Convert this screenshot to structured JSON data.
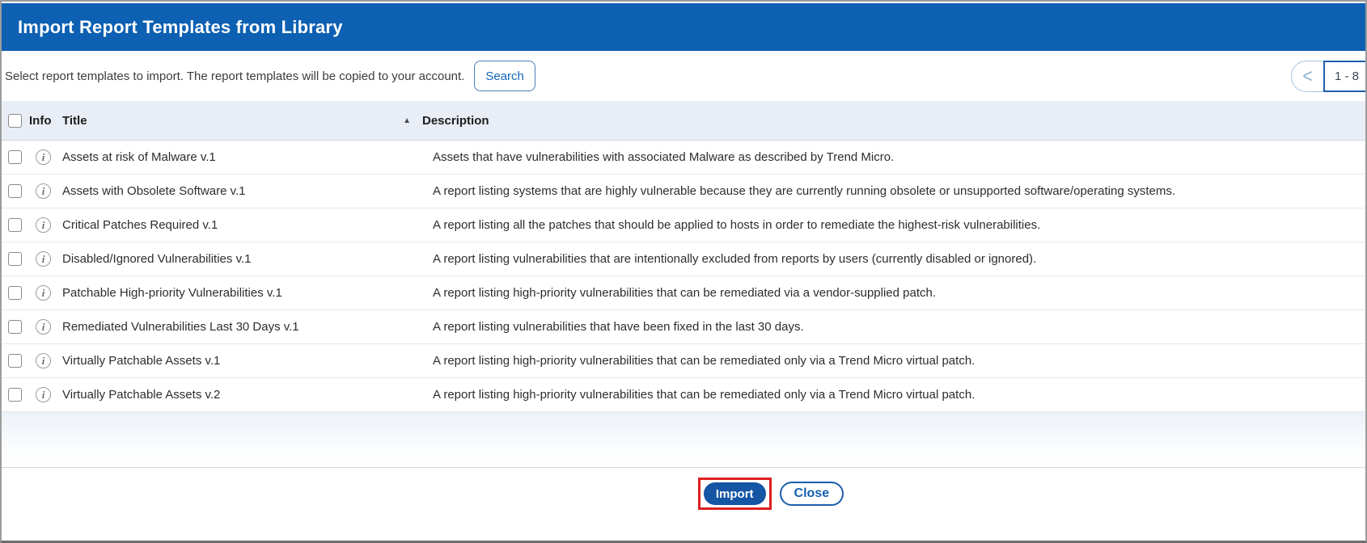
{
  "dialog": {
    "title": "Import Report Templates from Library"
  },
  "toolbar": {
    "instruction": "Select report templates to import. The report templates will be copied to your account.",
    "search_label": "Search",
    "pagination": {
      "prev_glyph": "<",
      "range": "1 - 8"
    }
  },
  "table": {
    "headers": {
      "info": "Info",
      "title": "Title",
      "description": "Description",
      "sort_ascending_glyph": "▲"
    },
    "rows": [
      {
        "title": "Assets at risk of Malware v.1",
        "description": "Assets that have vulnerabilities with associated Malware as described by Trend Micro."
      },
      {
        "title": "Assets with Obsolete Software v.1",
        "description": "A report listing systems that are highly vulnerable because they are currently running obsolete or unsupported software/operating systems."
      },
      {
        "title": "Critical Patches Required v.1",
        "description": "A report listing all the patches that should be applied to hosts in order to remediate the highest-risk vulnerabilities."
      },
      {
        "title": "Disabled/Ignored Vulnerabilities v.1",
        "description": "A report listing vulnerabilities that are intentionally excluded from reports by users (currently disabled or ignored)."
      },
      {
        "title": "Patchable High-priority Vulnerabilities v.1",
        "description": "A report listing high-priority vulnerabilities that can be remediated via a vendor-supplied patch."
      },
      {
        "title": "Remediated Vulnerabilities Last 30 Days v.1",
        "description": "A report listing vulnerabilities that have been fixed in the last 30 days."
      },
      {
        "title": "Virtually Patchable Assets v.1",
        "description": "A report listing high-priority vulnerabilities that can be remediated only via a Trend Micro virtual patch."
      },
      {
        "title": "Virtually Patchable Assets v.2",
        "description": "A report listing high-priority vulnerabilities that can be remediated only via a Trend Micro virtual patch."
      }
    ],
    "info_glyph": "i"
  },
  "footer": {
    "import_label": "Import",
    "close_label": "Close"
  },
  "colors": {
    "titlebar_blue": "#0d60b2",
    "button_blue": "#1455a4",
    "accent_blue": "#1c5dac",
    "highlight_red": "#dd1f1f",
    "header_row_bg": "#e9eef6"
  }
}
